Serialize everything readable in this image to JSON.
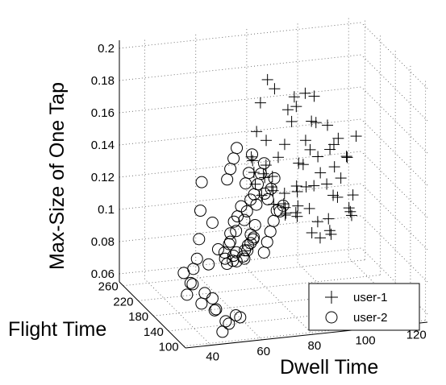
{
  "chart_data": {
    "type": "scatter",
    "projection": "3d",
    "xlabel": "Dwell Time",
    "ylabel": "Flight Time",
    "zlabel": "Max-Size of One Tap",
    "xticks": [
      "40",
      "60",
      "80",
      "100",
      "120"
    ],
    "yticks": [
      "100",
      "140",
      "180",
      "220",
      "260"
    ],
    "zticks": [
      "0.06",
      "0.08",
      "0.1",
      "0.12",
      "0.14",
      "0.16",
      "0.18",
      "0.2"
    ],
    "xlim": [
      30,
      125
    ],
    "ylim": [
      95,
      270
    ],
    "zlim": [
      0.055,
      0.205
    ],
    "grid": true,
    "legend_position": "bottom-right",
    "legend": {
      "location": "bottom-right",
      "entries": [
        "user-1",
        "user-2"
      ]
    },
    "series": [
      {
        "name": "user-1",
        "marker": "plus",
        "color": "#000000",
        "points": [
          [
            75,
            200,
            0.175
          ],
          [
            80,
            215,
            0.185
          ],
          [
            85,
            230,
            0.175
          ],
          [
            88,
            215,
            0.165
          ],
          [
            92,
            225,
            0.17
          ],
          [
            95,
            240,
            0.16
          ],
          [
            98,
            220,
            0.155
          ],
          [
            100,
            250,
            0.165
          ],
          [
            102,
            235,
            0.15
          ],
          [
            105,
            260,
            0.16
          ],
          [
            108,
            245,
            0.145
          ],
          [
            110,
            230,
            0.14
          ],
          [
            112,
            255,
            0.13
          ],
          [
            115,
            240,
            0.125
          ],
          [
            118,
            262,
            0.12
          ],
          [
            120,
            250,
            0.135
          ],
          [
            72,
            190,
            0.16
          ],
          [
            78,
            205,
            0.15
          ],
          [
            82,
            200,
            0.14
          ],
          [
            86,
            210,
            0.145
          ],
          [
            90,
            200,
            0.135
          ],
          [
            94,
            215,
            0.13
          ],
          [
            96,
            200,
            0.12
          ],
          [
            100,
            210,
            0.125
          ],
          [
            104,
            220,
            0.115
          ],
          [
            106,
            205,
            0.11
          ],
          [
            108,
            230,
            0.105
          ],
          [
            112,
            215,
            0.1
          ],
          [
            114,
            225,
            0.095
          ],
          [
            116,
            235,
            0.09
          ],
          [
            70,
            180,
            0.13
          ],
          [
            74,
            190,
            0.12
          ],
          [
            78,
            185,
            0.115
          ],
          [
            82,
            180,
            0.11
          ],
          [
            84,
            195,
            0.105
          ],
          [
            88,
            190,
            0.12
          ],
          [
            90,
            180,
            0.125
          ],
          [
            92,
            185,
            0.11
          ],
          [
            96,
            190,
            0.1
          ],
          [
            98,
            175,
            0.105
          ],
          [
            100,
            185,
            0.095
          ],
          [
            102,
            195,
            0.09
          ],
          [
            68,
            170,
            0.14
          ],
          [
            72,
            165,
            0.145
          ],
          [
            76,
            175,
            0.135
          ],
          [
            80,
            170,
            0.125
          ],
          [
            84,
            165,
            0.13
          ],
          [
            86,
            175,
            0.115
          ],
          [
            90,
            165,
            0.1
          ],
          [
            94,
            170,
            0.095
          ],
          [
            66,
            160,
            0.15
          ],
          [
            70,
            155,
            0.14
          ],
          [
            74,
            160,
            0.13
          ],
          [
            78,
            155,
            0.12
          ],
          [
            82,
            150,
            0.115
          ],
          [
            64,
            150,
            0.155
          ],
          [
            68,
            145,
            0.145
          ],
          [
            72,
            150,
            0.135
          ],
          [
            76,
            145,
            0.125
          ],
          [
            80,
            140,
            0.12
          ],
          [
            88,
            205,
            0.16
          ],
          [
            92,
            195,
            0.15
          ],
          [
            96,
            210,
            0.14
          ],
          [
            110,
            240,
            0.12
          ],
          [
            114,
            250,
            0.11
          ],
          [
            118,
            245,
            0.1
          ],
          [
            106,
            225,
            0.135
          ],
          [
            102,
            230,
            0.13
          ]
        ]
      },
      {
        "name": "user-2",
        "marker": "circle",
        "color": "#000000",
        "points": [
          [
            40,
            120,
            0.075
          ],
          [
            42,
            125,
            0.08
          ],
          [
            44,
            118,
            0.078
          ],
          [
            38,
            130,
            0.085
          ],
          [
            46,
            122,
            0.07
          ],
          [
            48,
            110,
            0.065
          ],
          [
            50,
            115,
            0.062
          ],
          [
            36,
            140,
            0.09
          ],
          [
            45,
            135,
            0.095
          ],
          [
            52,
            140,
            0.1
          ],
          [
            55,
            145,
            0.105
          ],
          [
            58,
            150,
            0.11
          ],
          [
            60,
            140,
            0.1
          ],
          [
            62,
            155,
            0.115
          ],
          [
            64,
            145,
            0.105
          ],
          [
            56,
            135,
            0.095
          ],
          [
            54,
            130,
            0.1
          ],
          [
            58,
            128,
            0.098
          ],
          [
            60,
            132,
            0.105
          ],
          [
            62,
            138,
            0.11
          ],
          [
            50,
            125,
            0.1
          ],
          [
            48,
            130,
            0.105
          ],
          [
            52,
            128,
            0.108
          ],
          [
            54,
            138,
            0.112
          ],
          [
            56,
            142,
            0.118
          ],
          [
            58,
            146,
            0.12
          ],
          [
            60,
            150,
            0.125
          ],
          [
            62,
            148,
            0.122
          ],
          [
            64,
            152,
            0.128
          ],
          [
            66,
            156,
            0.13
          ],
          [
            68,
            160,
            0.135
          ],
          [
            66,
            150,
            0.125
          ],
          [
            64,
            140,
            0.115
          ],
          [
            62,
            130,
            0.11
          ],
          [
            60,
            125,
            0.108
          ],
          [
            58,
            120,
            0.105
          ],
          [
            56,
            118,
            0.102
          ],
          [
            54,
            122,
            0.104
          ],
          [
            52,
            118,
            0.1
          ],
          [
            50,
            120,
            0.098
          ],
          [
            70,
            165,
            0.14
          ],
          [
            72,
            170,
            0.145
          ],
          [
            68,
            175,
            0.15
          ],
          [
            66,
            170,
            0.14
          ],
          [
            64,
            165,
            0.135
          ],
          [
            70,
            155,
            0.13
          ],
          [
            72,
            160,
            0.125
          ],
          [
            74,
            165,
            0.13
          ],
          [
            76,
            170,
            0.135
          ],
          [
            74,
            150,
            0.12
          ],
          [
            72,
            145,
            0.115
          ],
          [
            70,
            140,
            0.11
          ],
          [
            68,
            135,
            0.105
          ],
          [
            66,
            130,
            0.1
          ],
          [
            76,
            155,
            0.118
          ],
          [
            78,
            160,
            0.12
          ],
          [
            46,
            160,
            0.14
          ],
          [
            44,
            150,
            0.125
          ],
          [
            48,
            145,
            0.118
          ],
          [
            42,
            140,
            0.11
          ],
          [
            40,
            132,
            0.1
          ],
          [
            38,
            128,
            0.095
          ],
          [
            36,
            122,
            0.088
          ],
          [
            34,
            118,
            0.082
          ],
          [
            44,
            112,
            0.072
          ],
          [
            52,
            110,
            0.068
          ],
          [
            54,
            112,
            0.066
          ],
          [
            46,
            105,
            0.06
          ],
          [
            60,
            170,
            0.15
          ],
          [
            62,
            175,
            0.155
          ],
          [
            58,
            165,
            0.145
          ],
          [
            56,
            160,
            0.14
          ]
        ]
      }
    ]
  }
}
